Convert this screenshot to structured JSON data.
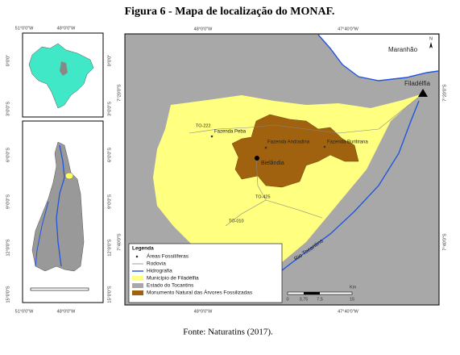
{
  "title": "Figura 6 - Mapa de localização do MONAF.",
  "caption": "Fonte: Naturatins (2017).",
  "inset": {
    "x_labels": [
      "51°0'0\"W",
      "48°0'0\"W"
    ],
    "y_labels": [
      "0°0'0\"",
      "3°0'0\"S",
      "6°0'0\"S",
      "9°0'0\"S",
      "12°0'0\"S",
      "15°0'0\"S"
    ]
  },
  "main_map": {
    "x_labels": [
      "48°0'0\"W",
      "47°40'0\"W"
    ],
    "y_labels": [
      "7°20'0\"S",
      "7°40'0\"S"
    ],
    "north": "N",
    "places": [
      "Maranhão",
      "Filadélfia",
      "TO-222",
      "Fazenda Peba",
      "Fazenda Andradina",
      "Fazenda Buritirana",
      "Bielândia",
      "TO-425",
      "TO-010",
      "Rio Tocantins"
    ]
  },
  "legend": {
    "title": "Legenda",
    "items": [
      "Áreas Fossilíferas",
      "Rodovia",
      "Hidrografia",
      "Município de Filadélfia",
      "Estado do Tocantins",
      "Monumento Natural das Árvores Fossilizadas"
    ]
  },
  "scale": {
    "ticks": [
      "0",
      "3,75",
      "7,5",
      "15"
    ],
    "unit": "Km"
  }
}
